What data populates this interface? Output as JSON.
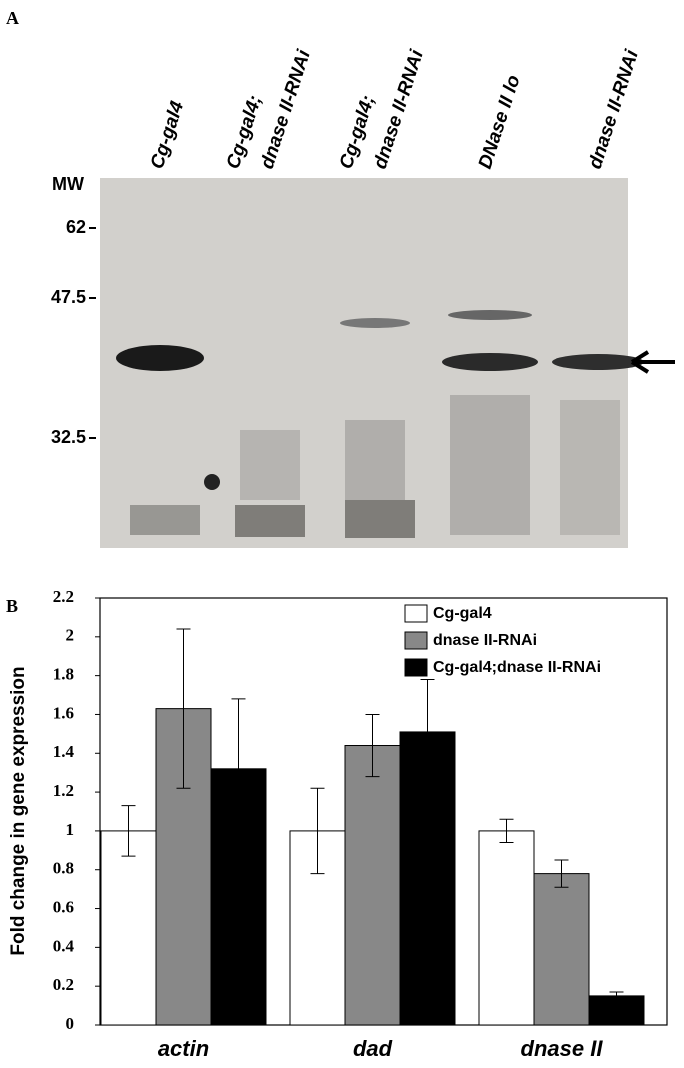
{
  "blot": {
    "panel_label": "A",
    "mw_label": "MW",
    "mw_markers": [
      "62",
      "47.5",
      "32.5"
    ],
    "lanes": [
      [
        "Cg-gal4"
      ],
      [
        "Cg-gal4;",
        "dnase II-RNAi"
      ],
      [
        "Cg-gal4;",
        "dnase II-RNAi"
      ],
      [
        "DNase II lo"
      ],
      [
        "dnase II-RNAi"
      ]
    ]
  },
  "chart_data": {
    "type": "bar",
    "panel_label": "B",
    "y_label": "Fold change in gene expression",
    "categories": [
      "actin",
      "dad",
      "dnase II"
    ],
    "series": [
      {
        "name": "Cg-gal4",
        "color": "#ffffff",
        "values": [
          1.0,
          1.0,
          1.0
        ],
        "errors": [
          0.13,
          0.22,
          0.06
        ]
      },
      {
        "name": "dnase II-RNAi",
        "color": "#888888",
        "values": [
          1.63,
          1.44,
          0.78
        ],
        "errors": [
          0.41,
          0.16,
          0.07
        ]
      },
      {
        "name": "Cg-gal4;dnase II-RNAi",
        "color": "#000000",
        "values": [
          1.32,
          1.51,
          0.15
        ],
        "errors": [
          0.36,
          0.27,
          0.02
        ]
      }
    ],
    "ylim": [
      0,
      2.2
    ],
    "yticks": [
      0,
      0.2,
      0.4,
      0.6,
      0.8,
      1,
      1.2,
      1.4,
      1.6,
      1.8,
      2,
      2.2
    ],
    "legend": "top-right"
  }
}
